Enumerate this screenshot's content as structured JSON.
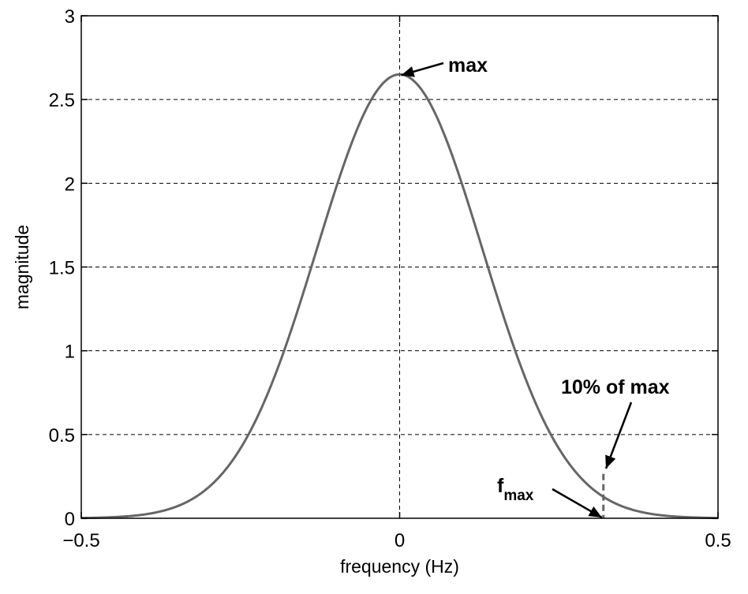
{
  "chart_data": {
    "type": "line",
    "title": "",
    "xlabel": "frequency (Hz)",
    "ylabel": "magnitude",
    "xlim": [
      -0.5,
      0.5
    ],
    "ylim": [
      0,
      3
    ],
    "grid": true,
    "x_ticks": [
      -0.5,
      0,
      0.5
    ],
    "x_tick_labels": [
      "−0.5",
      "0",
      "0.5"
    ],
    "y_ticks": [
      0,
      0.5,
      1,
      1.5,
      2,
      2.5,
      3
    ],
    "y_tick_labels": [
      "0",
      "0.5",
      "1",
      "1.5",
      "2",
      "2.5",
      "3"
    ],
    "series": [
      {
        "name": "magnitude",
        "color": "#666666",
        "x": [
          -0.5,
          -0.45,
          -0.4,
          -0.35,
          -0.3,
          -0.25,
          -0.2,
          -0.15,
          -0.1,
          -0.05,
          0,
          0.05,
          0.1,
          0.15,
          0.2,
          0.25,
          0.3,
          0.35,
          0.4,
          0.45,
          0.5
        ],
        "y": [
          0.01,
          0.04,
          0.1,
          0.24,
          0.5,
          0.89,
          1.38,
          1.88,
          2.3,
          2.56,
          2.65,
          2.56,
          2.3,
          1.88,
          1.38,
          0.89,
          0.5,
          0.24,
          0.1,
          0.04,
          0.01
        ]
      }
    ],
    "reference_lines": {
      "vertical_at_zero": 0,
      "f_max": 0.32,
      "f_max_magnitude": 0.265
    },
    "annotations": {
      "max_label": "max",
      "ten_percent_label": "10% of max",
      "fmax_main": "f",
      "fmax_sub": "max"
    }
  }
}
